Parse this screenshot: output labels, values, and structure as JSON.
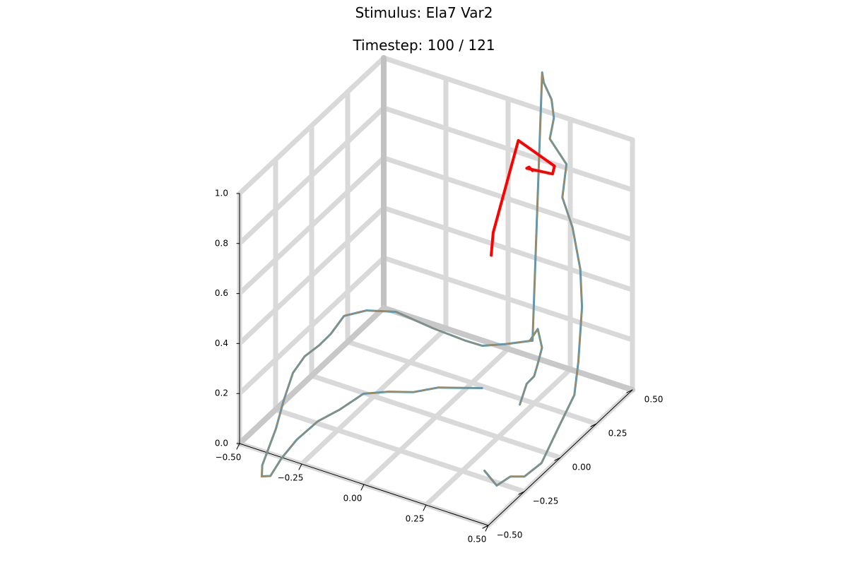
{
  "chart_data": {
    "type": "line3d",
    "title": "Stimulus: Ela7 Var2",
    "subtitle": "Timestep: 100 / 121",
    "x_ticks": [
      "−0.50",
      "−0.25",
      "0.00",
      "0.25",
      "0.50"
    ],
    "y_ticks": [
      "−0.50",
      "−0.25",
      "0.00",
      "0.25",
      "0.50"
    ],
    "z_ticks": [
      "0.0",
      "0.2",
      "0.4",
      "0.6",
      "0.8",
      "1.0"
    ],
    "xlim": [
      -0.5,
      0.5
    ],
    "ylim": [
      -0.5,
      0.5
    ],
    "zlim": [
      0.0,
      1.0
    ],
    "grid": true,
    "legend": "none",
    "colors": {
      "highlight": "#ff0000",
      "trace_main": "#a08a5a",
      "trace_alt1": "#3b9ad9",
      "trace_alt2": "#3daa6e",
      "grid": "#d9d9d9"
    },
    "highlight_series": {
      "x": [
        0.11,
        0.16,
        0.22,
        0.37,
        0.43,
        0.36,
        0.45,
        0.5
      ],
      "y": [
        0.48,
        0.37,
        0.25,
        0.17,
        0.08,
        -0.05,
        -0.38,
        -0.48
      ],
      "z": [
        0.76,
        0.85,
        0.93,
        1.0,
        1.1,
        1.25,
        1.09,
        1.07
      ]
    },
    "traces": [
      {
        "color_key": "trace_main",
        "x": [
          0.45,
          0.47,
          0.49,
          0.5,
          0.54,
          0.58,
          0.62,
          0.63,
          0.61,
          0.58,
          0.52,
          0.45,
          0.42,
          0.33,
          0.3,
          0.25,
          0.19,
          0.16,
          0.11,
          0.11,
          0.16,
          0.2,
          0.2,
          0.18,
          0.15,
          0.14
        ],
        "y": [
          -0.44,
          -0.39,
          -0.33,
          -0.25,
          -0.2,
          -0.15,
          -0.11,
          -0.1,
          -0.04,
          0.0,
          0.05,
          0.1,
          0.18,
          0.22,
          0.3,
          0.37,
          0.42,
          0.46,
          0.48,
          0.46,
          0.43,
          0.39,
          0.36,
          0.37,
          0.37,
          0.34
        ],
        "z": [
          0.17,
          0.09,
          0.1,
          0.06,
          0.1,
          0.23,
          0.35,
          0.48,
          0.66,
          0.78,
          0.9,
          0.97,
          1.05,
          1.1,
          1.13,
          1.15,
          1.17,
          1.18,
          0.08,
          0.09,
          0.17,
          0.13,
          0.08,
          0.02,
          -0.02,
          -0.09
        ]
      },
      {
        "color_key": "trace_main",
        "x": [
          0.11,
          0.05,
          0.0,
          -0.03,
          -0.1,
          -0.19,
          -0.25,
          -0.3,
          -0.33,
          -0.36,
          -0.4,
          -0.43,
          -0.45,
          -0.47,
          -0.48,
          -0.49,
          -0.48,
          -0.44,
          -0.4,
          -0.35,
          -0.29,
          -0.23,
          -0.17,
          -0.11,
          -0.05,
          0.01,
          0.07,
          0.11
        ],
        "y": [
          0.48,
          0.4,
          0.32,
          0.25,
          0.15,
          0.05,
          -0.05,
          -0.12,
          -0.16,
          -0.19,
          -0.22,
          -0.25,
          -0.28,
          -0.3,
          -0.33,
          -0.36,
          -0.38,
          -0.39,
          -0.38,
          -0.36,
          -0.32,
          -0.27,
          -0.21,
          -0.14,
          -0.07,
          0.0,
          0.07,
          0.13
        ],
        "z": [
          0.08,
          0.09,
          0.11,
          0.16,
          0.24,
          0.33,
          0.37,
          0.37,
          0.31,
          0.27,
          0.23,
          0.17,
          0.07,
          -0.04,
          -0.1,
          -0.16,
          -0.19,
          -0.17,
          -0.09,
          -0.01,
          0.06,
          0.1,
          0.15,
          0.14,
          0.12,
          0.12,
          0.1,
          0.08
        ]
      }
    ]
  }
}
